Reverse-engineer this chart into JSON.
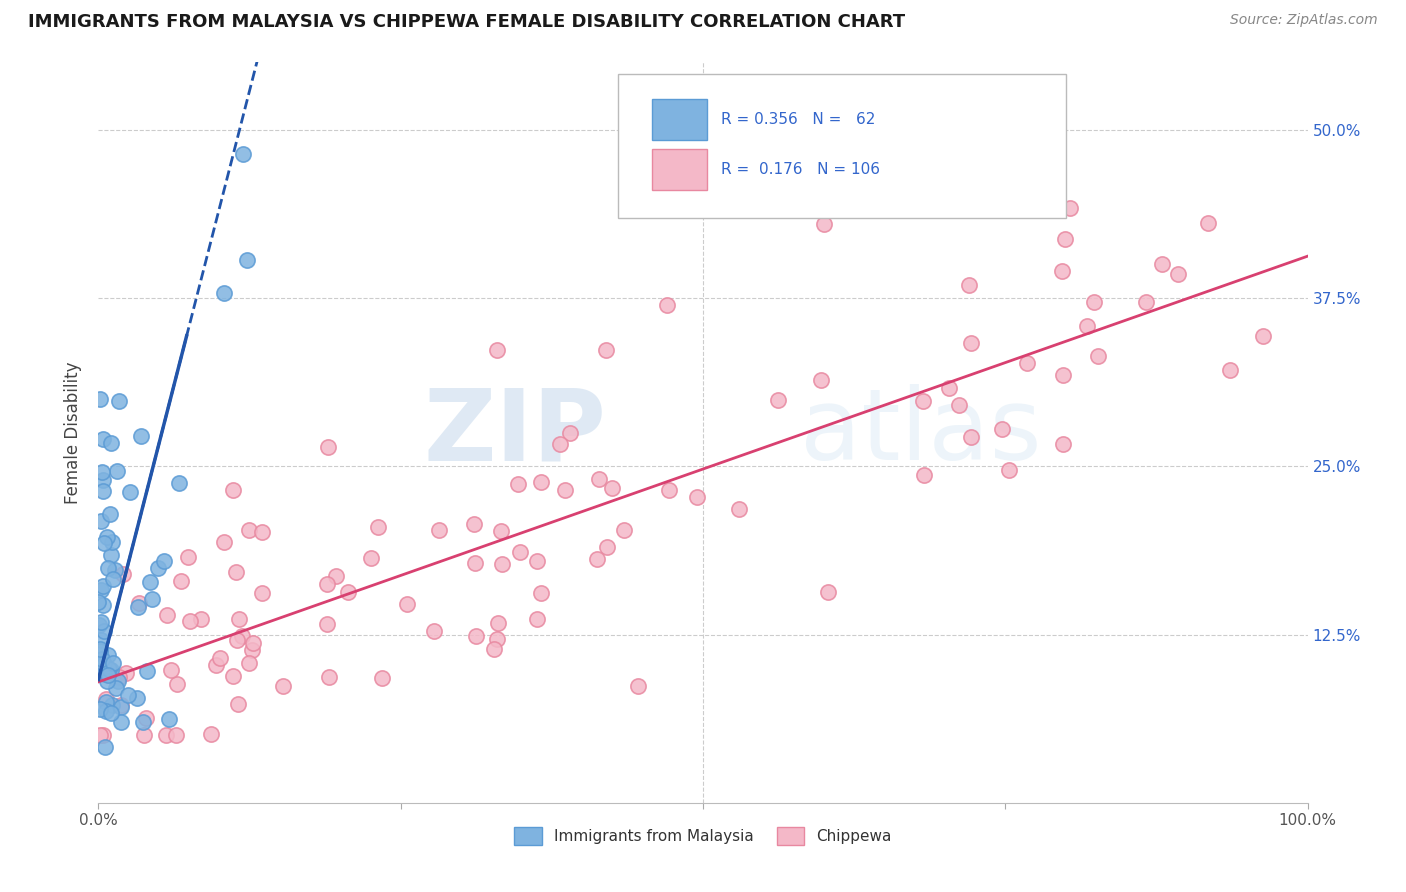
{
  "title": "IMMIGRANTS FROM MALAYSIA VS CHIPPEWA FEMALE DISABILITY CORRELATION CHART",
  "source": "Source: ZipAtlas.com",
  "ylabel": "Female Disability",
  "yticks": [
    "12.5%",
    "25.0%",
    "37.5%",
    "50.0%"
  ],
  "ytick_vals": [
    0.125,
    0.25,
    0.375,
    0.5
  ],
  "xlim": [
    0.0,
    1.0
  ],
  "ylim": [
    0.0,
    0.55
  ],
  "watermark_zip": "ZIP",
  "watermark_atlas": "atlas",
  "blue_color": "#7fb3e0",
  "blue_edge_color": "#5b9bd5",
  "pink_color": "#f4b8c8",
  "pink_edge_color": "#e888a0",
  "blue_line_color": "#2255aa",
  "pink_line_color": "#d84070",
  "grid_color": "#cccccc",
  "title_color": "#1a1a1a",
  "source_color": "#888888",
  "right_tick_color": "#3366cc",
  "legend_text_color": "#3366cc",
  "legend_label_color": "#333333"
}
